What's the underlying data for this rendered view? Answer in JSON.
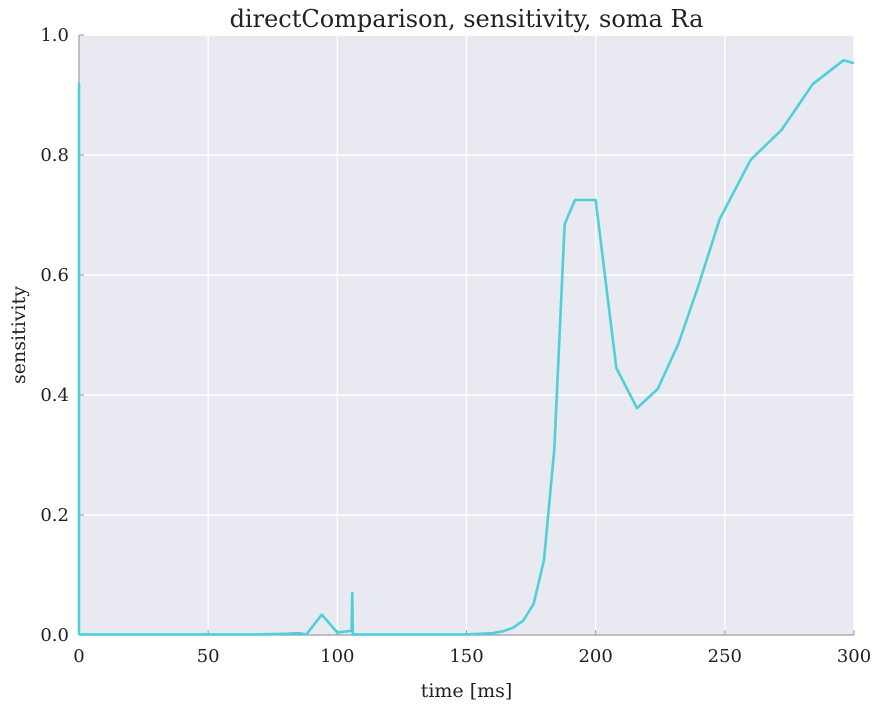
{
  "chart_data": {
    "type": "line",
    "title": "directComparison, sensitivity, soma Ra",
    "xlabel": "time [ms]",
    "ylabel": "sensitivity",
    "xlim": [
      0,
      300
    ],
    "ylim": [
      0,
      1.0
    ],
    "xticks": [
      0,
      50,
      100,
      150,
      200,
      250,
      300
    ],
    "xtick_labels": [
      "0",
      "50",
      "100",
      "150",
      "200",
      "250",
      "300"
    ],
    "yticks": [
      0.0,
      0.2,
      0.4,
      0.6,
      0.8,
      1.0
    ],
    "ytick_labels": [
      "0.0",
      "0.2",
      "0.4",
      "0.6",
      "0.8",
      "1.0"
    ],
    "grid": true,
    "background": "#e8e9f1",
    "grid_color": "#ffffff",
    "series": [
      {
        "color": "#4fd0d8",
        "x": [
          0,
          0,
          0.3,
          10,
          20,
          30,
          40,
          50,
          60,
          70,
          80,
          85,
          88,
          94,
          100,
          105.5,
          105.8,
          106,
          106.3,
          110,
          120,
          130,
          140,
          150,
          155,
          160,
          164,
          168,
          172,
          176,
          180,
          184,
          188,
          192,
          200,
          208,
          216,
          224,
          232,
          240,
          248,
          260,
          272,
          284,
          296,
          300
        ],
        "y": [
          0.92,
          0.002,
          0.001,
          0.001,
          0.001,
          0.001,
          0.001,
          0.001,
          0.001,
          0.001,
          0.002,
          0.003,
          0.001,
          0.034,
          0.004,
          0.007,
          0.07,
          0.001,
          0.001,
          0.001,
          0.001,
          0.001,
          0.001,
          0.001,
          0.002,
          0.003,
          0.006,
          0.012,
          0.024,
          0.052,
          0.125,
          0.31,
          0.685,
          0.725,
          0.725,
          0.445,
          0.378,
          0.41,
          0.485,
          0.585,
          0.693,
          0.792,
          0.842,
          0.918,
          0.958,
          0.953
        ]
      }
    ]
  }
}
